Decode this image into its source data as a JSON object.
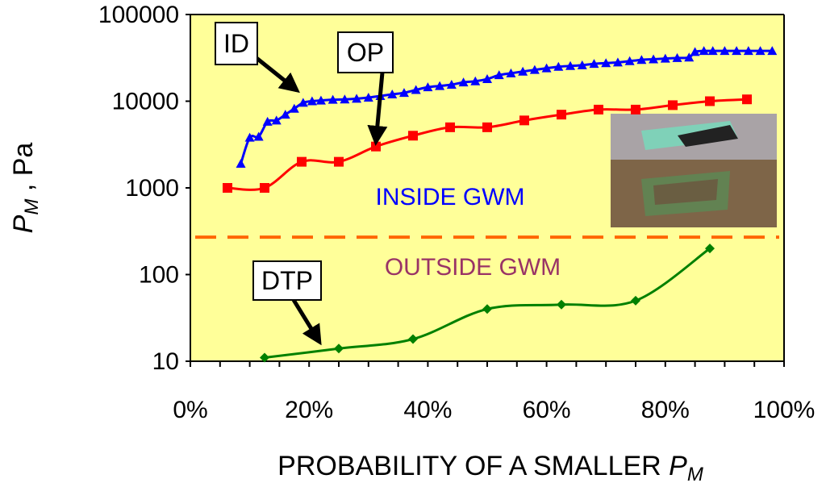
{
  "chart_data": {
    "type": "line",
    "y_scale": "log",
    "ylim": [
      10,
      100000
    ],
    "xlim": [
      0,
      100
    ],
    "xlabel": "PROBABILITY OF A SMALLER ",
    "xlabel_var": "P",
    "xlabel_sub": "M",
    "ylabel_var": "P",
    "ylabel_sub": "M",
    "ylabel_unit": " , Pa",
    "x_ticks": [
      0,
      20,
      40,
      60,
      80,
      100
    ],
    "x_tick_labels": [
      "0%",
      "20%",
      "40%",
      "60%",
      "80%",
      "100%"
    ],
    "y_ticks": [
      10,
      100,
      1000,
      10000,
      100000
    ],
    "y_tick_labels": [
      "10",
      "100",
      "1000",
      "10000",
      "100000"
    ],
    "plot_background": "#ffff99",
    "threshold": {
      "value": 270,
      "color": "#ff6600",
      "style": "dashed"
    },
    "region_labels": [
      {
        "text": "INSIDE GWM",
        "color": "#0000ff"
      },
      {
        "text": "OUTSIDE GWM",
        "color": "#993366"
      }
    ],
    "series": [
      {
        "name": "ID",
        "color": "#0000ff",
        "marker": "triangle",
        "x": [
          8.5,
          10,
          11.5,
          13,
          14.5,
          16,
          17.5,
          19,
          20.5,
          22,
          24,
          26,
          28,
          30,
          32,
          34,
          36,
          38,
          40,
          42,
          44,
          46,
          48,
          50,
          52,
          54,
          56,
          58,
          60,
          62,
          64,
          66,
          68,
          70,
          72,
          74,
          76,
          78,
          80,
          82,
          84,
          85,
          86.5,
          88,
          90,
          92,
          94,
          96,
          98
        ],
        "values": [
          1900,
          3800,
          3900,
          5800,
          6000,
          7000,
          8200,
          9600,
          10000,
          10200,
          10400,
          10500,
          10700,
          11000,
          11500,
          12000,
          12500,
          13500,
          14500,
          15000,
          15500,
          16500,
          17000,
          18000,
          20000,
          21000,
          22000,
          23000,
          24000,
          25000,
          25500,
          26000,
          27000,
          27500,
          28000,
          29000,
          30000,
          30500,
          31000,
          31500,
          32000,
          37000,
          38000,
          38000,
          38000,
          38000,
          38000,
          38000,
          38000
        ]
      },
      {
        "name": "OP",
        "color": "#ff0000",
        "marker": "square",
        "x": [
          6.25,
          12.5,
          18.75,
          25,
          31.25,
          37.5,
          43.75,
          50,
          56.25,
          62.5,
          68.75,
          75,
          81.25,
          87.5,
          93.75
        ],
        "values": [
          1000,
          1000,
          2000,
          2000,
          3000,
          4000,
          5000,
          5000,
          6000,
          7000,
          8000,
          8000,
          9000,
          10000,
          10500
        ]
      },
      {
        "name": "DTP",
        "color": "#008000",
        "marker": "diamond",
        "x": [
          12.5,
          25,
          37.5,
          50,
          62.5,
          75,
          87.5
        ],
        "values": [
          11,
          14,
          18,
          40,
          45,
          50,
          200
        ]
      }
    ],
    "annotations": [
      {
        "label": "ID"
      },
      {
        "label": "OP"
      },
      {
        "label": "DTP"
      }
    ]
  },
  "inset_photo": {
    "description_icon": "photo-icon"
  }
}
